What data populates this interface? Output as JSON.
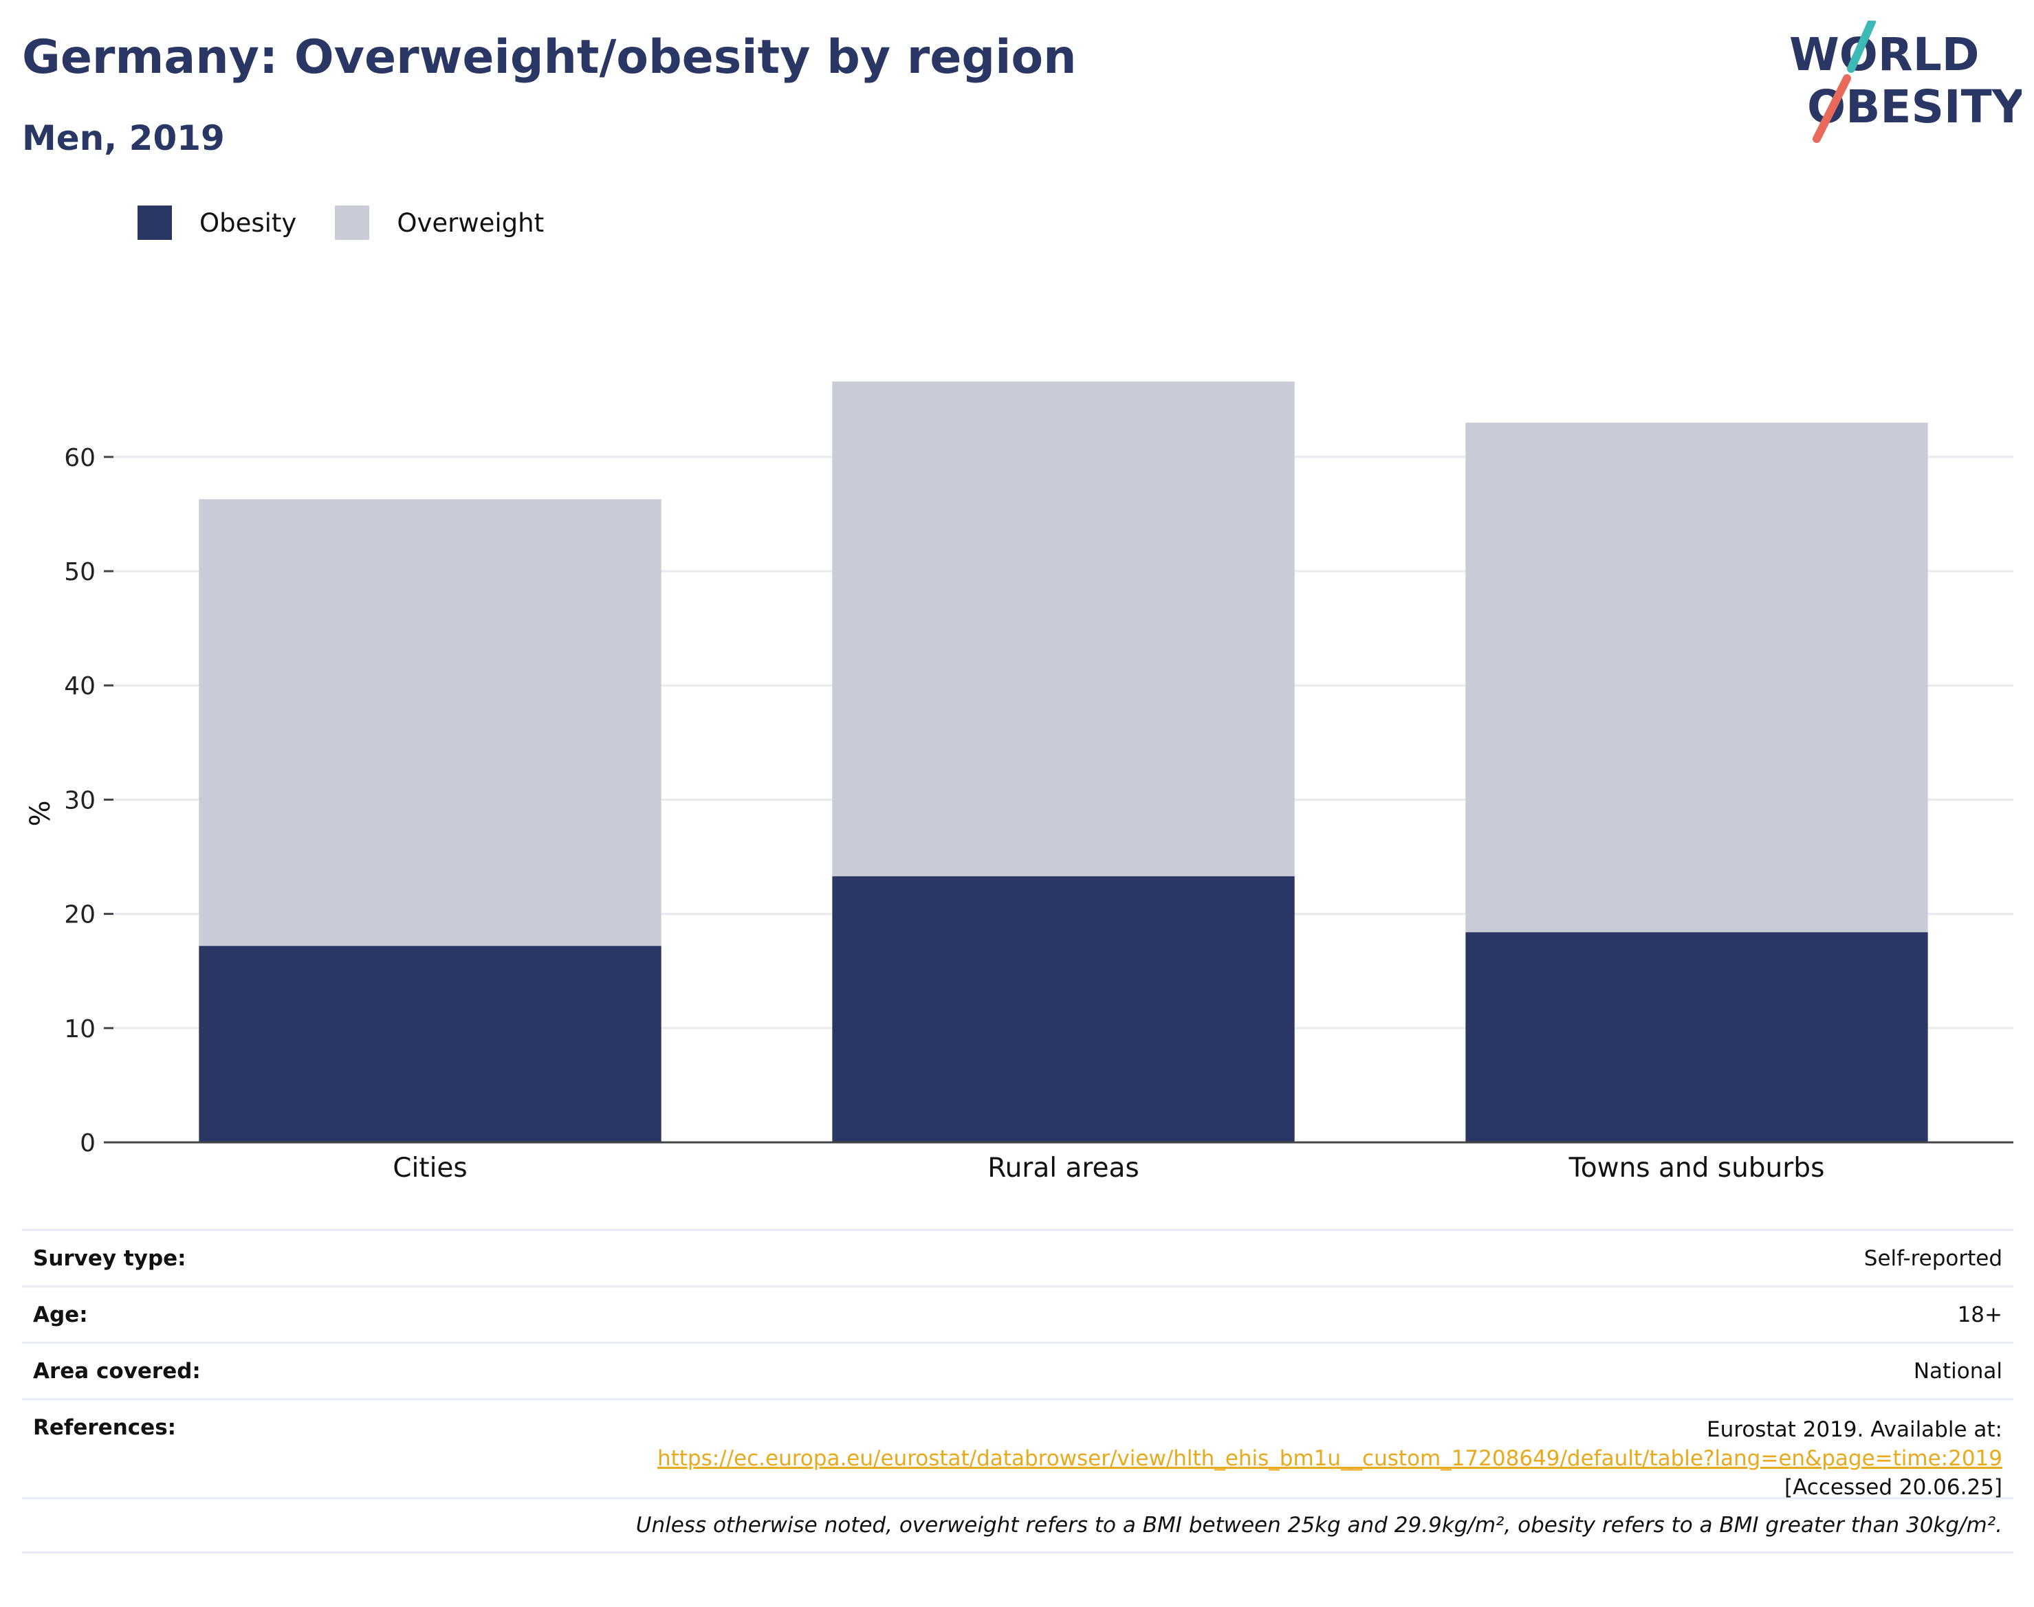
{
  "header": {
    "title": "Germany: Overweight/obesity by region",
    "subtitle": "Men, 2019"
  },
  "logo": {
    "line1": "WORLD",
    "line2": "OBESITY",
    "colors": {
      "text": "#2a3663",
      "slash_top": "#3dbab5",
      "slash_bottom": "#e86a5a"
    }
  },
  "chart_data": {
    "type": "bar",
    "stacked": true,
    "categories": [
      "Cities",
      "Rural areas",
      "Towns and suburbs"
    ],
    "series": [
      {
        "name": "Obesity",
        "color": "#2a3663",
        "values": [
          17.2,
          23.3,
          18.4
        ]
      },
      {
        "name": "Overweight",
        "color": "#c9cbd6",
        "values": [
          39.1,
          43.3,
          44.6
        ]
      }
    ],
    "xlabel": "",
    "ylabel": "%",
    "ylim": [
      0,
      70
    ],
    "yticks": [
      0,
      10,
      20,
      30,
      40,
      50,
      60
    ],
    "grid": true,
    "legend_position": "top-left"
  },
  "info": {
    "survey_type": {
      "label": "Survey type:",
      "value": "Self-reported"
    },
    "age": {
      "label": "Age:",
      "value": "18+"
    },
    "area": {
      "label": "Area covered:",
      "value": "National"
    },
    "references": {
      "label": "References:",
      "line1": "Eurostat 2019. Available at:",
      "link": "https://ec.europa.eu/eurostat/databrowser/view/hlth_ehis_bm1u__custom_17208649/default/table?lang=en&page=time:2019",
      "line3": "[Accessed 20.06.25]"
    },
    "note": "Unless otherwise noted, overweight refers to a BMI between 25kg and 29.9kg/m², obesity refers to a BMI greater than 30kg/m²."
  }
}
